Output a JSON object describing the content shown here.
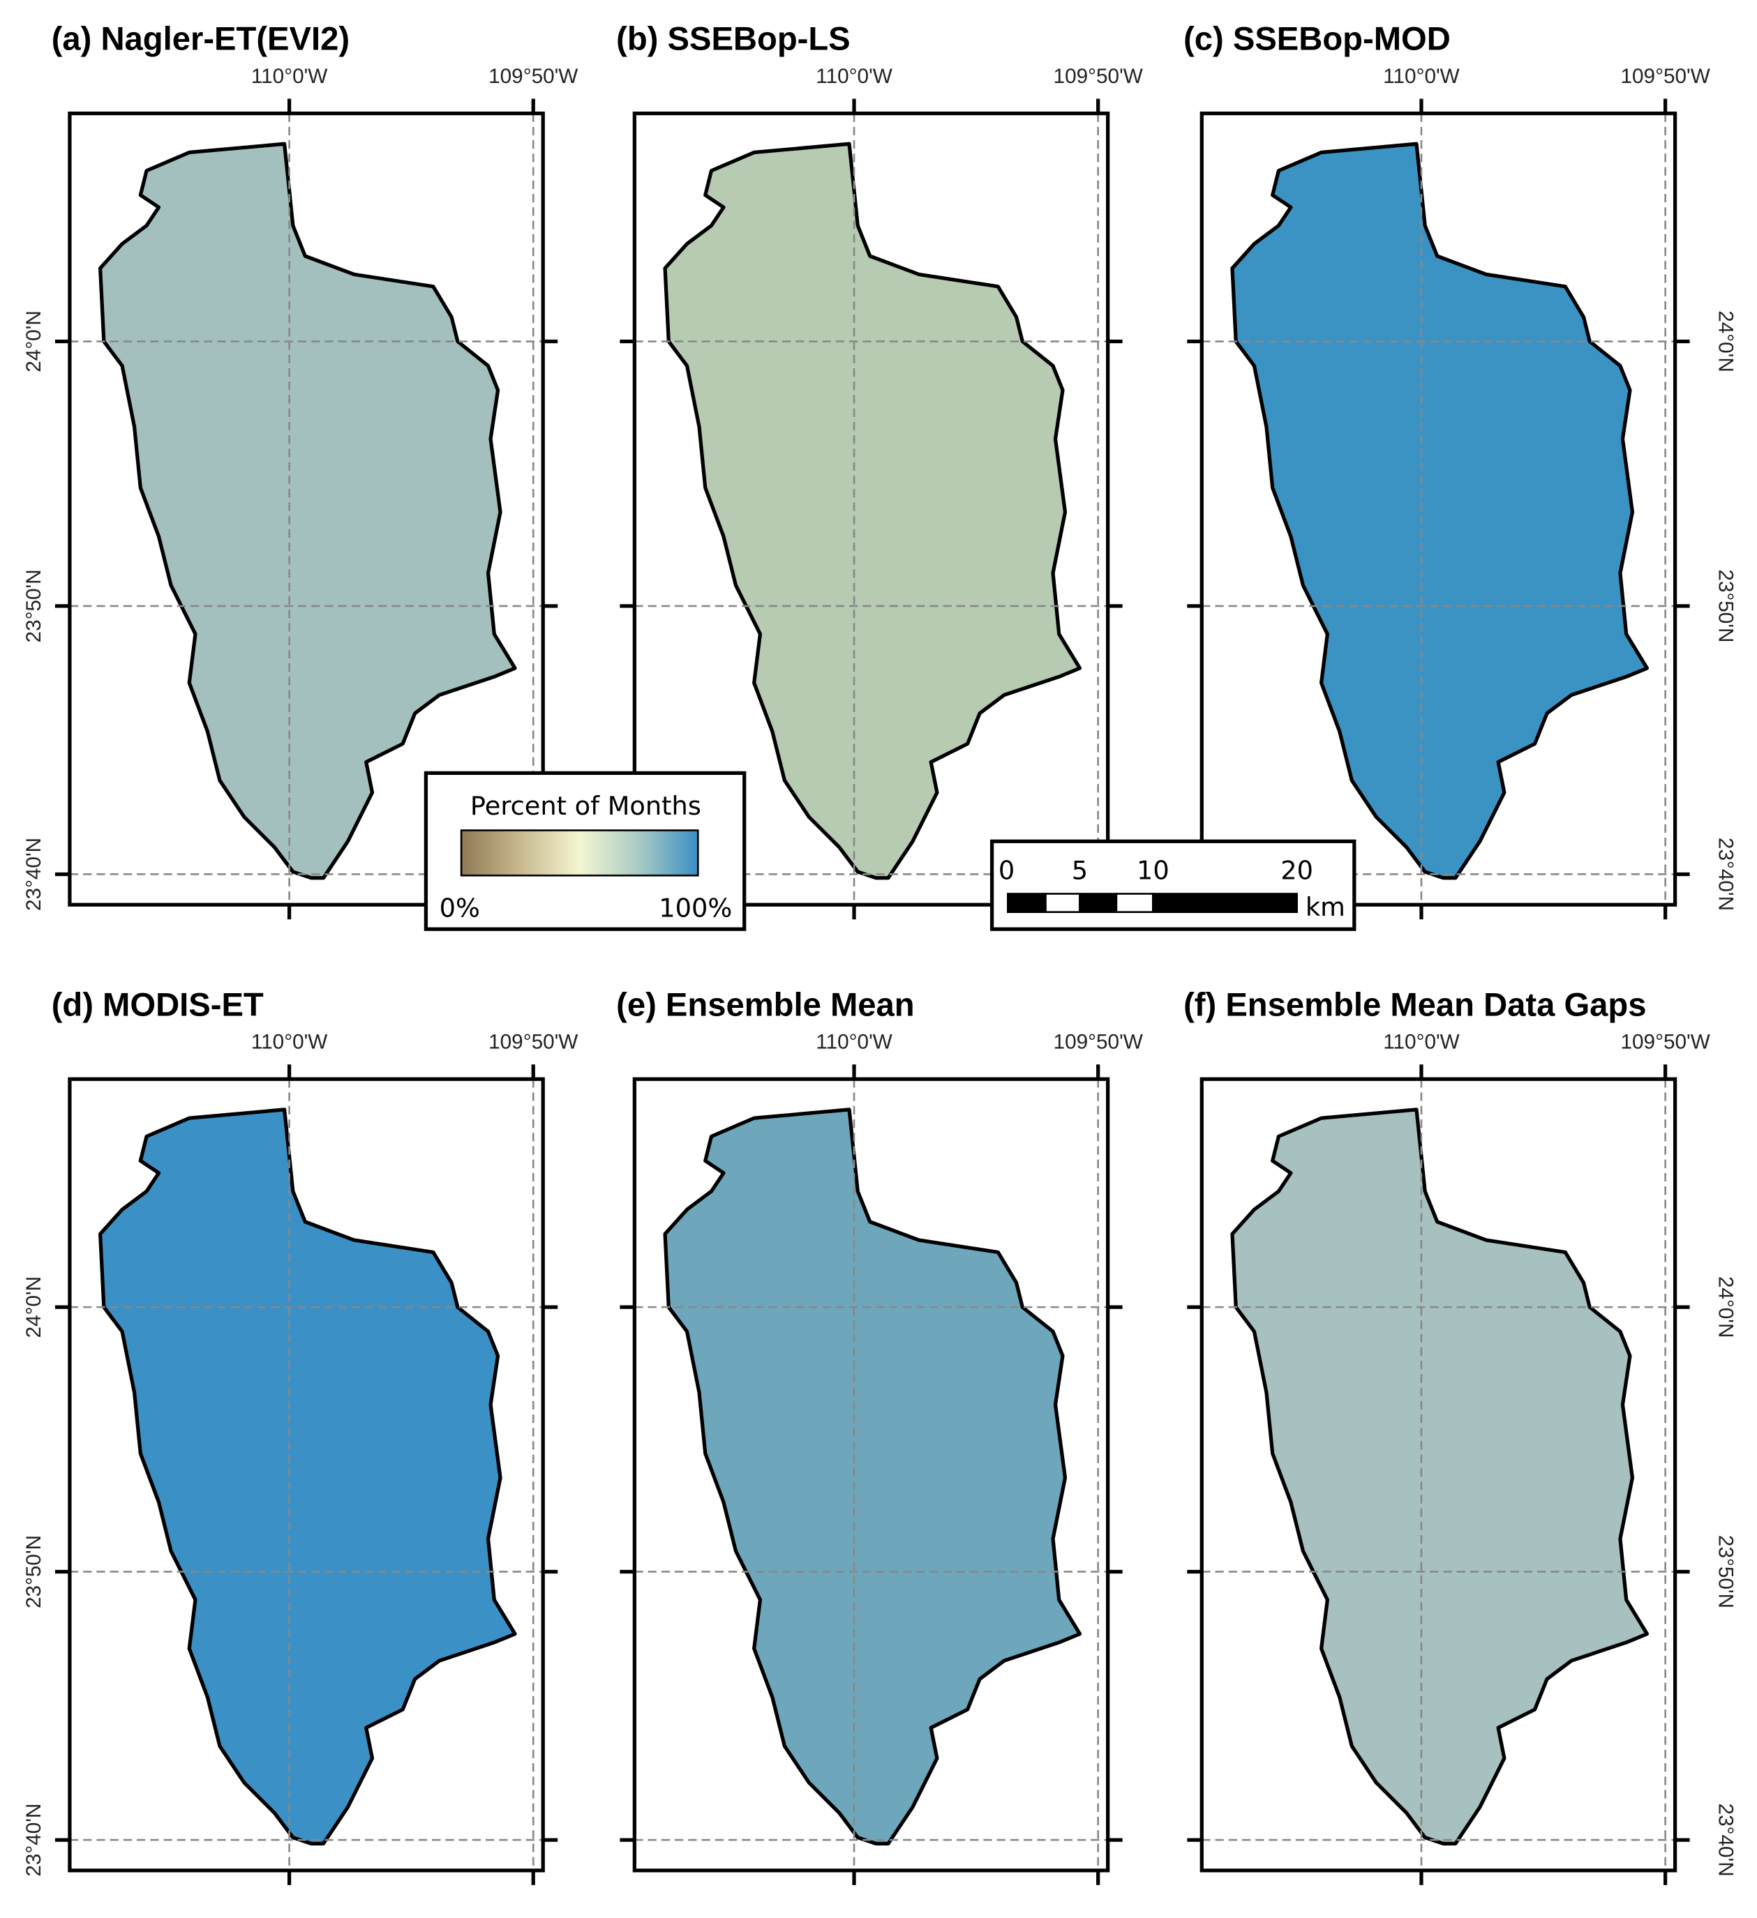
{
  "panels": [
    {
      "label": "(a) Nagler-ET(EVI2)",
      "fill": "#a3c0bf"
    },
    {
      "label": "(b) SSEBop-LS",
      "fill": "#b6cbb2"
    },
    {
      "label": "(c) SSEBop-MOD",
      "fill": "#3b93c4"
    },
    {
      "label": "(d) MODIS-ET",
      "fill": "#3b90c6"
    },
    {
      "label": "(e) Ensemble Mean",
      "fill": "#6ea7bc"
    },
    {
      "label": "(f) Ensemble Mean Data Gaps",
      "fill": "#a6c1c0"
    }
  ],
  "graticule": {
    "lon": [
      "110°0'W",
      "109°50'W"
    ],
    "lat": [
      "24°0'N",
      "23°50'N",
      "23°40'N"
    ]
  },
  "legend": {
    "title": "Percent of Months",
    "min": "0%",
    "max": "100%"
  },
  "scale_bar": {
    "labels": [
      "0",
      "5",
      "10",
      "20"
    ],
    "unit": "km"
  }
}
